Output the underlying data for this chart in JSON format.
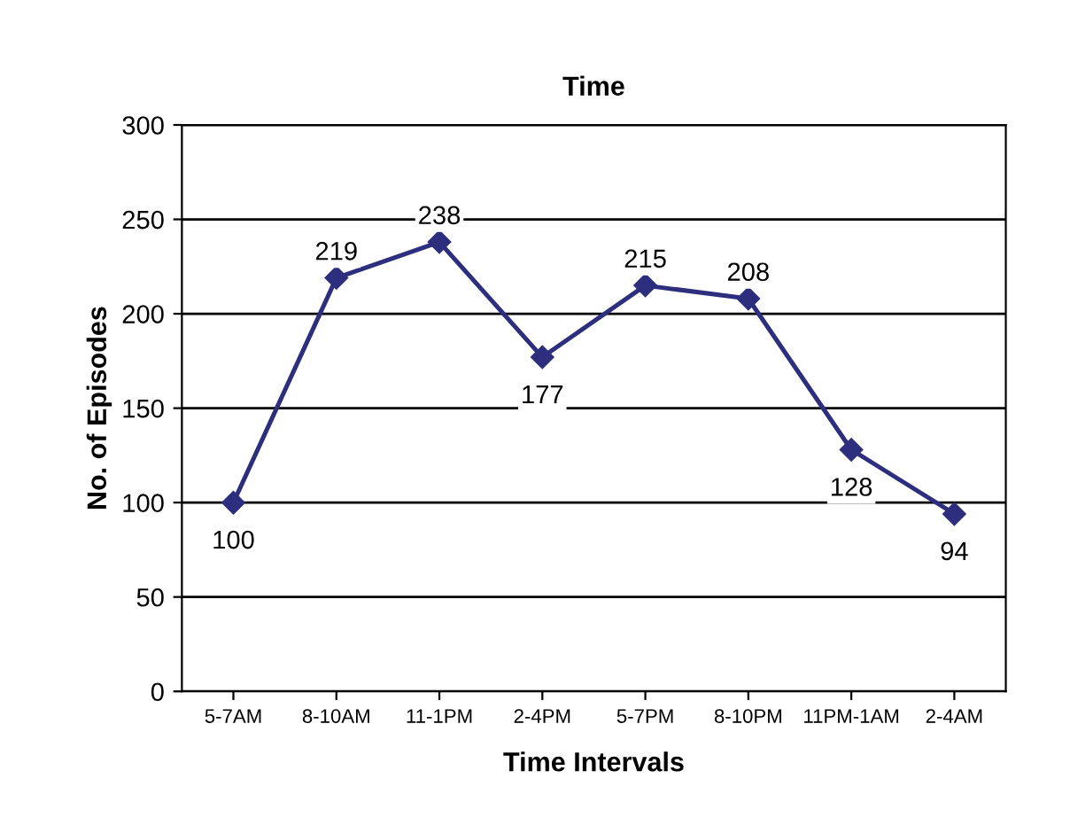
{
  "chart_data": {
    "type": "line",
    "title": "Time",
    "xlabel": "Time Intervals",
    "ylabel": "No. of Episodes",
    "categories": [
      "5-7AM",
      "8-10AM",
      "11-1PM",
      "2-4PM",
      "5-7PM",
      "8-10PM",
      "11PM-1AM",
      "2-4AM"
    ],
    "series": [
      {
        "color": "#2e2e7e",
        "values": [
          100,
          219,
          238,
          177,
          215,
          208,
          128,
          94
        ]
      }
    ],
    "ylim": [
      0,
      300
    ],
    "yticks": [
      0,
      50,
      100,
      150,
      200,
      250,
      300
    ],
    "grid": "y",
    "marker": "diamond",
    "line_style": "solid",
    "data_labels": true
  }
}
